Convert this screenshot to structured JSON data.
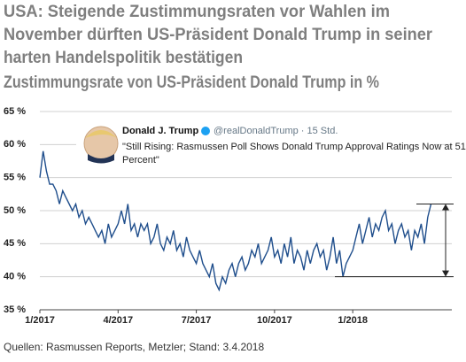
{
  "chart_data": {
    "type": "line",
    "title": [
      "USA: Steigende Zustimmungsraten vor Wahlen im",
      "November dürften US-Präsident Donald Trump in seiner",
      "harten Handelspolitik bestätigen"
    ],
    "subtitle": "Zustimmungsrate von US-Präsident Donald Trump in %",
    "source": "Quellen: Rasmussen Reports, Metzler; Stand: 3.4.2018",
    "annotation": {
      "name": "Donald J. Trump",
      "handle": "@realDonaldTrump · 15 Std.",
      "text": [
        "\"Still Rising: Rasmussen Poll Shows Donald Trump Approval Ratings Now at 51",
        "Percent\""
      ]
    },
    "range_arrow": {
      "from": 40,
      "to": 51
    },
    "color": "#1f4e8c",
    "xlim": [
      0,
      15.8
    ],
    "xticks": [
      {
        "value": 0,
        "label": "1/2017"
      },
      {
        "value": 3,
        "label": "4/2017"
      },
      {
        "value": 6,
        "label": "7/2017"
      },
      {
        "value": 9,
        "label": "10/2017"
      },
      {
        "value": 12,
        "label": "1/2018"
      }
    ],
    "ylim": [
      35,
      65
    ],
    "yticks": [
      {
        "value": 35,
        "label": "35 %"
      },
      {
        "value": 40,
        "label": "40 %"
      },
      {
        "value": 45,
        "label": "45 %"
      },
      {
        "value": 50,
        "label": "50 %"
      },
      {
        "value": 55,
        "label": "55 %"
      },
      {
        "value": 60,
        "label": "60 %"
      },
      {
        "value": 65,
        "label": "65 %"
      }
    ],
    "grid": true,
    "x": [
      0,
      0.125,
      0.25,
      0.375,
      0.5,
      0.625,
      0.75,
      0.875,
      1,
      1.125,
      1.25,
      1.375,
      1.5,
      1.625,
      1.75,
      1.875,
      2,
      2.125,
      2.25,
      2.375,
      2.5,
      2.625,
      2.75,
      2.875,
      3,
      3.125,
      3.25,
      3.375,
      3.5,
      3.625,
      3.75,
      3.875,
      4,
      4.125,
      4.25,
      4.375,
      4.5,
      4.625,
      4.75,
      4.875,
      5,
      5.125,
      5.25,
      5.375,
      5.5,
      5.625,
      5.75,
      5.875,
      6,
      6.125,
      6.25,
      6.375,
      6.5,
      6.625,
      6.75,
      6.875,
      7,
      7.125,
      7.25,
      7.375,
      7.5,
      7.625,
      7.75,
      7.875,
      8,
      8.125,
      8.25,
      8.375,
      8.5,
      8.625,
      8.75,
      8.875,
      9,
      9.125,
      9.25,
      9.375,
      9.5,
      9.625,
      9.75,
      9.875,
      10,
      10.125,
      10.25,
      10.375,
      10.5,
      10.625,
      10.75,
      10.875,
      11,
      11.125,
      11.25,
      11.375,
      11.5,
      11.625,
      11.75,
      11.875,
      12,
      12.125,
      12.25,
      12.375,
      12.5,
      12.625,
      12.75,
      12.875,
      13,
      13.125,
      13.25,
      13.375,
      13.5,
      13.625,
      13.75,
      13.875,
      14,
      14.125,
      14.25,
      14.375,
      14.5,
      14.625,
      14.75,
      14.875,
      15
    ],
    "values": [
      55,
      59,
      56,
      54,
      54,
      53,
      51,
      53,
      52,
      51,
      50,
      51,
      49,
      50,
      48,
      49,
      48,
      47,
      46,
      47,
      45,
      48,
      46,
      47,
      48,
      50,
      48,
      51,
      47,
      48,
      46,
      48,
      47,
      48,
      45,
      46,
      48,
      45,
      44,
      46,
      45,
      47,
      44,
      45,
      43,
      46,
      44,
      43,
      42,
      44,
      42,
      41,
      40,
      42,
      39,
      38,
      40,
      39,
      41,
      42,
      40,
      42,
      43,
      41,
      42,
      44,
      43,
      45,
      42,
      43,
      44,
      46,
      43,
      44,
      42,
      45,
      43,
      46,
      42,
      44,
      43,
      41,
      44,
      42,
      44,
      45,
      43,
      44,
      41,
      43,
      46,
      42,
      44,
      40,
      42,
      43,
      44,
      46,
      48,
      45,
      47,
      49,
      46,
      48,
      47,
      49,
      50,
      47,
      48,
      45,
      47,
      48,
      46,
      47,
      44,
      47,
      46,
      48,
      45,
      49,
      51
    ]
  }
}
